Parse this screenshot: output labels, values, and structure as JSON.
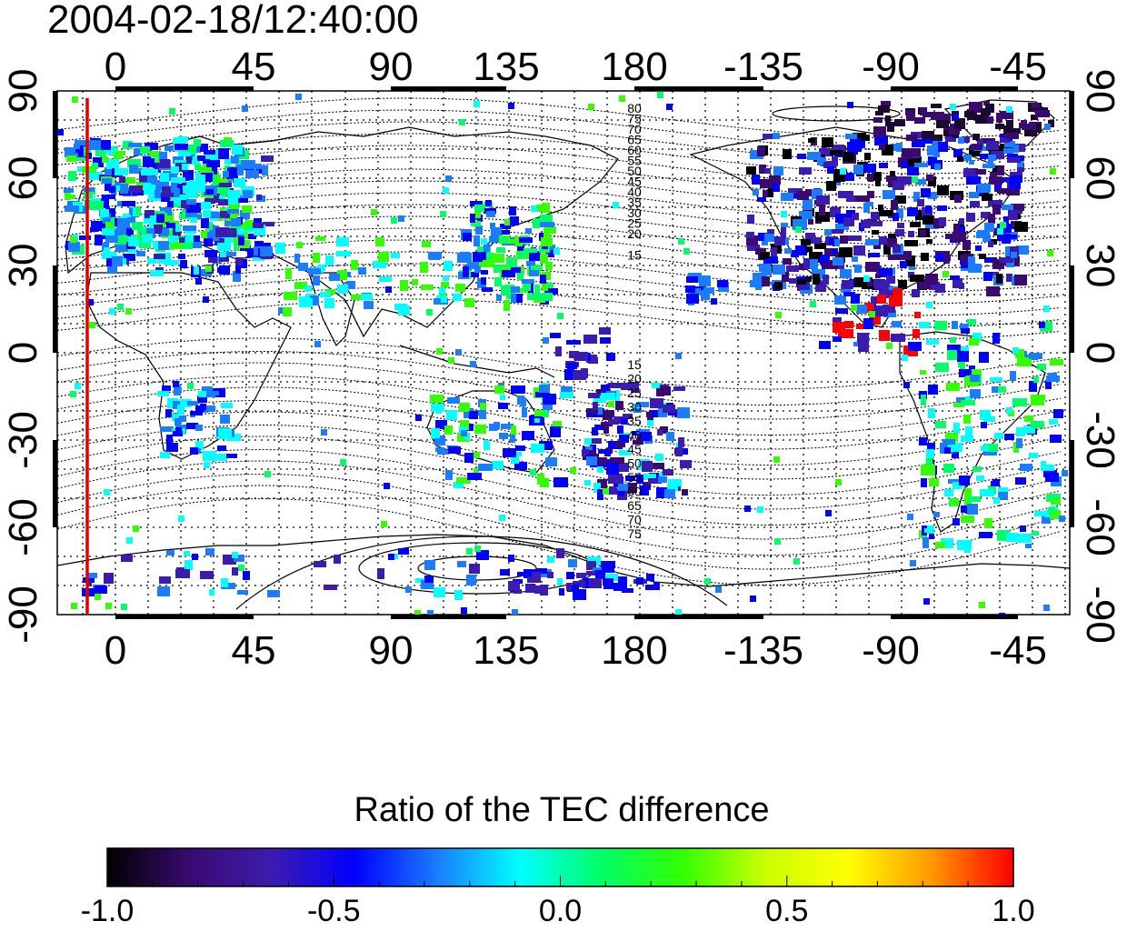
{
  "title": "2004-02-18/12:40:00",
  "map": {
    "lon_ticks": [
      "0",
      "45",
      "90",
      "135",
      "180",
      "-135",
      "-90",
      "-45"
    ],
    "lat_ticks_left": [
      "90",
      "60",
      "30",
      "0",
      "-30",
      "-60",
      "-90"
    ],
    "lat_ticks_right": [
      "90",
      "60",
      "30",
      "0",
      "-30",
      "-60",
      "-90"
    ],
    "contour_labels_north": [
      "80",
      "75",
      "70",
      "65",
      "60",
      "55",
      "50",
      "45",
      "40",
      "35",
      "30",
      "25",
      "20",
      "15"
    ],
    "contour_labels_south": [
      "15",
      "20",
      "25",
      "30",
      "35",
      "40",
      "45",
      "50",
      "55",
      "60",
      "65",
      "70",
      "75"
    ],
    "terminator_color": "#e00000"
  },
  "colorbar": {
    "title": "Ratio of the TEC difference",
    "range": [
      -1.0,
      1.0
    ],
    "tick_labels": [
      "-1.0",
      "-0.5",
      "0.0",
      "0.5",
      "1.0"
    ],
    "colors": [
      "#000000",
      "#3a0a70",
      "#3c1cb0",
      "#0000ff",
      "#1a7cff",
      "#00ffff",
      "#00ff66",
      "#33ff00",
      "#ccff00",
      "#ffff00",
      "#ff9900",
      "#ff0000"
    ]
  }
}
